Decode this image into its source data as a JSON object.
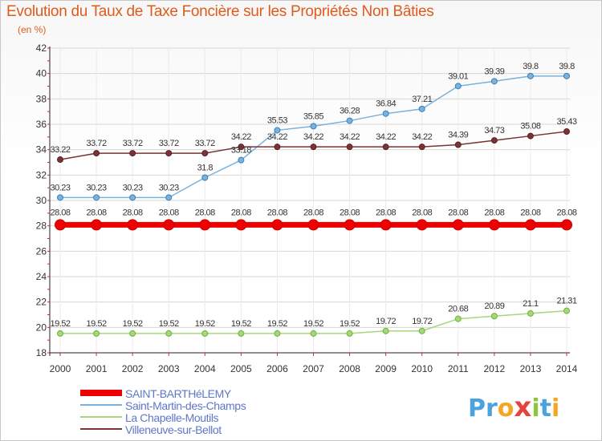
{
  "header": {
    "title": "Evolution du Taux de Taxe Foncière sur les Propriétés Non Bâties",
    "unit": "(en %)"
  },
  "logo": {
    "letters": [
      "P",
      "r",
      "o",
      "x",
      "i",
      "t",
      "i"
    ],
    "colors": [
      "#4aa3df",
      "#4aa3df",
      "#f5a623",
      "#e8423b",
      "#8cc63f",
      "#4aa3df",
      "#f5a623"
    ]
  },
  "chart_data": {
    "type": "line",
    "title": "Evolution du Taux de Taxe Foncière sur les Propriétés Non Bâties",
    "ylabel": "(en %)",
    "xlabel": "",
    "x": [
      "2000",
      "2001",
      "2002",
      "2003",
      "2004",
      "2005",
      "2006",
      "2007",
      "2008",
      "2009",
      "2010",
      "2011",
      "2012",
      "2013",
      "2014"
    ],
    "ylim": [
      18,
      42
    ],
    "yticks": [
      "18",
      "20",
      "22",
      "24",
      "26",
      "28",
      "30",
      "32",
      "34",
      "36",
      "38",
      "40",
      "42"
    ],
    "grid": true,
    "series": [
      {
        "name": "SAINT-BARTHéLEMY",
        "color": "#ee0000",
        "values": [
          28.08,
          28.08,
          28.08,
          28.08,
          28.08,
          28.08,
          28.08,
          28.08,
          28.08,
          28.08,
          28.08,
          28.08,
          28.08,
          28.08,
          28.08
        ],
        "labels": [
          "28.08",
          "28.08",
          "28.08",
          "28.08",
          "28.08",
          "28.08",
          "28.08",
          "28.08",
          "28.08",
          "28.08",
          "28.08",
          "28.08",
          "28.08",
          "28.08",
          "28.08"
        ]
      },
      {
        "name": "Saint-Martin-des-Champs",
        "color": "#7ab2dc",
        "values": [
          30.23,
          30.23,
          30.23,
          30.23,
          31.8,
          33.18,
          35.53,
          35.85,
          36.28,
          36.84,
          37.21,
          39.01,
          39.39,
          39.8,
          39.8
        ],
        "labels": [
          "30.23",
          "30.23",
          "30.23",
          "30.23",
          "31.8",
          "33.18",
          "35.53",
          "35.85",
          "36.28",
          "36.84",
          "37.21",
          "39.01",
          "39.39",
          "39.8",
          "39.8"
        ]
      },
      {
        "name": "La Chapelle-Moutils",
        "color": "#a6d77a",
        "values": [
          19.52,
          19.52,
          19.52,
          19.52,
          19.52,
          19.52,
          19.52,
          19.52,
          19.52,
          19.72,
          19.72,
          20.68,
          20.89,
          21.1,
          21.31
        ],
        "labels": [
          "19.52",
          "19.52",
          "19.52",
          "19.52",
          "19.52",
          "19.52",
          "19.52",
          "19.52",
          "19.52",
          "19.72",
          "19.72",
          "20.68",
          "20.89",
          "21.1",
          "21.31"
        ]
      },
      {
        "name": "Villeneuve-sur-Bellot",
        "color": "#7a3436",
        "values": [
          33.22,
          33.72,
          33.72,
          33.72,
          33.72,
          34.22,
          34.22,
          34.22,
          34.22,
          34.22,
          34.22,
          34.39,
          34.73,
          35.08,
          35.43
        ],
        "labels": [
          "33.22",
          "33.72",
          "33.72",
          "33.72",
          "33.72",
          "34.22",
          "34.22",
          "34.22",
          "34.22",
          "34.22",
          "34.22",
          "34.39",
          "34.73",
          "35.08",
          "35.43"
        ]
      }
    ]
  }
}
